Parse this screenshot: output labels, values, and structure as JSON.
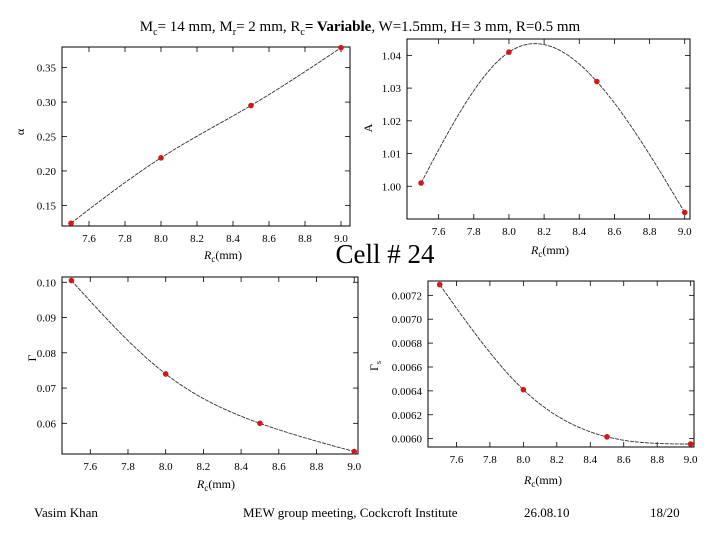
{
  "slide": {
    "title_parts": [
      {
        "t": "M",
        "b": false
      },
      {
        "t": "c",
        "sub": true
      },
      {
        "t": "= 14 mm, M",
        "b": false
      },
      {
        "t": "r",
        "sub": true
      },
      {
        "t": "= 2 mm, R",
        "b": false
      },
      {
        "t": "c",
        "sub": true
      },
      {
        "t": "= Variable",
        "b": true
      },
      {
        "t": ", W=1.5mm, H= 3 mm, R=0.5 mm",
        "b": false
      }
    ],
    "cell_label": "Cell # 24",
    "author": "Vasim Khan",
    "meeting": "MEW group meeting, Cockcroft Institute",
    "date": "26.08.10",
    "page": "18/20"
  },
  "colors": {
    "marker": "#d01818",
    "curve": "#303030",
    "frame": "#000000"
  },
  "chart_data": [
    {
      "type": "line",
      "id": "alpha",
      "title": "",
      "xlabel": "Rc(mm)",
      "ylabel": "α",
      "x": [
        7.5,
        8.0,
        8.5,
        9.0
      ],
      "y": [
        0.124,
        0.219,
        0.295,
        0.379
      ],
      "xlim": [
        7.45,
        9.05
      ],
      "ylim": [
        0.12,
        0.38
      ],
      "xticks": [
        7.6,
        7.8,
        8.0,
        8.2,
        8.4,
        8.6,
        8.8,
        9.0
      ],
      "yticks": [
        0.15,
        0.2,
        0.25,
        0.3,
        0.35
      ],
      "ytick_decimals": 2
    },
    {
      "type": "line",
      "id": "A",
      "title": "",
      "xlabel": "Rc(mm)",
      "ylabel": "A",
      "x": [
        7.5,
        8.0,
        8.5,
        9.0
      ],
      "y": [
        1.001,
        1.041,
        1.032,
        0.992
      ],
      "xlim": [
        7.42,
        9.03
      ],
      "ylim": [
        0.99,
        1.045
      ],
      "xticks": [
        7.6,
        7.8,
        8.0,
        8.2,
        8.4,
        8.6,
        8.8,
        9.0
      ],
      "yticks": [
        1.0,
        1.01,
        1.02,
        1.03,
        1.04
      ],
      "ytick_decimals": 2
    },
    {
      "type": "line",
      "id": "Gamma",
      "title": "",
      "xlabel": "Rc(mm)",
      "ylabel": "Γ",
      "x": [
        7.5,
        8.0,
        8.5,
        9.0
      ],
      "y": [
        0.1005,
        0.074,
        0.06,
        0.052
      ],
      "xlim": [
        7.45,
        9.02
      ],
      "ylim": [
        0.0513,
        0.1015
      ],
      "xticks": [
        7.6,
        7.8,
        8.0,
        8.2,
        8.4,
        8.6,
        8.8,
        9.0
      ],
      "yticks": [
        0.06,
        0.07,
        0.08,
        0.09,
        0.1
      ],
      "ytick_decimals": 2
    },
    {
      "type": "line",
      "id": "Gamma_s",
      "title": "",
      "xlabel": "Rc(mm)",
      "ylabel": "Γs",
      "x": [
        7.5,
        8.0,
        8.5,
        9.0
      ],
      "y": [
        0.00729,
        0.00641,
        0.006015,
        0.005955
      ],
      "xlim": [
        7.43,
        9.02
      ],
      "ylim": [
        0.00593,
        0.00732
      ],
      "xticks": [
        7.6,
        7.8,
        8.0,
        8.2,
        8.4,
        8.6,
        8.8,
        9.0
      ],
      "yticks": [
        0.006,
        0.0062,
        0.0064,
        0.0066,
        0.0068,
        0.007,
        0.0072
      ],
      "ytick_decimals": 4
    }
  ]
}
